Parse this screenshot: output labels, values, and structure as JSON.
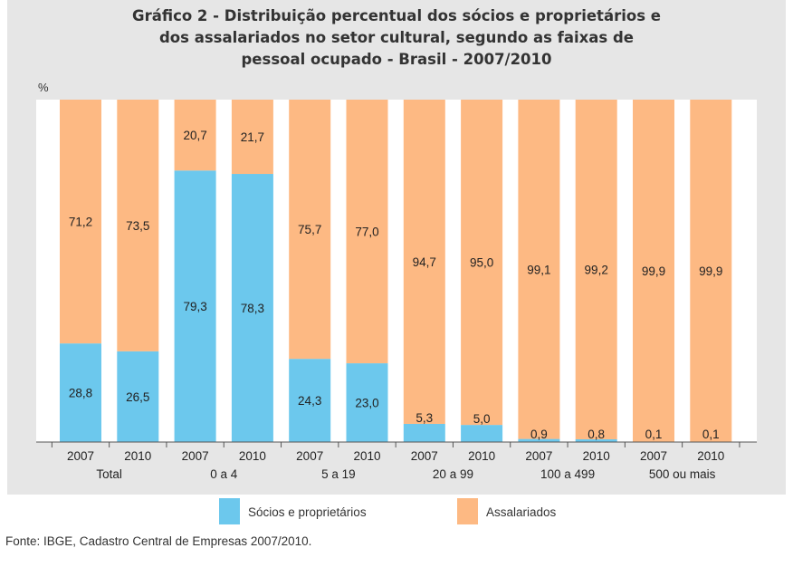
{
  "chart_data": {
    "type": "bar",
    "stacked": true,
    "title_lines": [
      "Gráfico 2 - Distribuição percentual dos sócios e proprietários e",
      "dos assalariados no setor cultural, segundo as faixas de",
      "pessoal ocupado - Brasil - 2007/2010"
    ],
    "ylabel": "%",
    "ylim": [
      0,
      100
    ],
    "grid": false,
    "legend_position": "bottom",
    "categories": [
      "2007",
      "2010",
      "2007",
      "2010",
      "2007",
      "2010",
      "2007",
      "2010",
      "2007",
      "2010",
      "2007",
      "2010"
    ],
    "groups": [
      "Total",
      "0 a 4",
      "5 a 19",
      "20 a 99",
      "100 a 499",
      "500 ou mais"
    ],
    "series": [
      {
        "name": "Sócios e proprietários",
        "color": "#6cc8ed",
        "values": [
          28.8,
          26.5,
          79.3,
          78.3,
          24.3,
          23.0,
          5.3,
          5.0,
          0.9,
          0.8,
          0.1,
          0.1
        ],
        "labels": [
          "28,8",
          "26,5",
          "79,3",
          "78,3",
          "24,3",
          "23,0",
          "5,3",
          "5,0",
          "0,9",
          "0,8",
          "0,1",
          "0,1"
        ]
      },
      {
        "name": "Assalariados",
        "color": "#fdb983",
        "values": [
          71.2,
          73.5,
          20.7,
          21.7,
          75.7,
          77.0,
          94.7,
          95.0,
          99.1,
          99.2,
          99.9,
          99.9
        ],
        "labels": [
          "71,2",
          "73,5",
          "20,7",
          "21,7",
          "75,7",
          "77,0",
          "94,7",
          "95,0",
          "99,1",
          "99,2",
          "99,9",
          "99,9"
        ]
      }
    ]
  },
  "source": "Fonte: IBGE, Cadastro Central de Empresas 2007/2010."
}
